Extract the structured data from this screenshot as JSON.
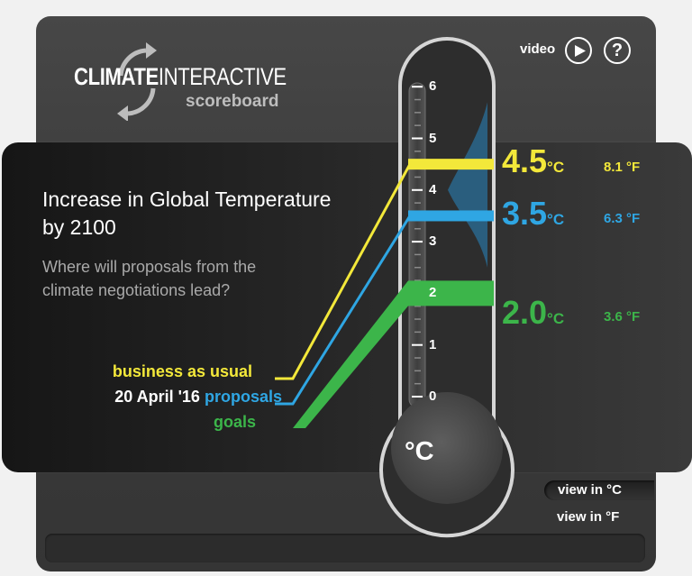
{
  "logo": {
    "word_bold": "CLIMATE",
    "word_light": "INTERACTIVE",
    "sub": "scoreboard"
  },
  "header": {
    "video_label": "video",
    "help_label": "?"
  },
  "main": {
    "headline": "Increase in Global Temperature by 2100",
    "subhead": "Where will proposals from the climate negotiations lead?"
  },
  "legend": {
    "business_as_usual": "business as usual",
    "proposals_date": "20 April '16",
    "proposals": "proposals",
    "goals": "goals"
  },
  "scale": {
    "ticks": [
      "0",
      "1",
      "2",
      "3",
      "4",
      "5",
      "6"
    ],
    "unit_label": "°C"
  },
  "results": {
    "business_as_usual": {
      "celsius": "4.5",
      "c_unit": "°C",
      "fahrenheit": "8.1 °F",
      "value_c": 4.5,
      "color": "#f3e83a"
    },
    "proposals": {
      "celsius": "3.5",
      "c_unit": "°C",
      "fahrenheit": "6.3 °F",
      "value_c": 3.5,
      "color": "#2fa6e3"
    },
    "goals": {
      "celsius": "2.0",
      "c_unit": "°C",
      "fahrenheit": "3.6 °F",
      "value_c": 2.0,
      "color": "#3cb54a"
    }
  },
  "controls": {
    "view_c": "view in °C",
    "view_f": "view in °F"
  }
}
